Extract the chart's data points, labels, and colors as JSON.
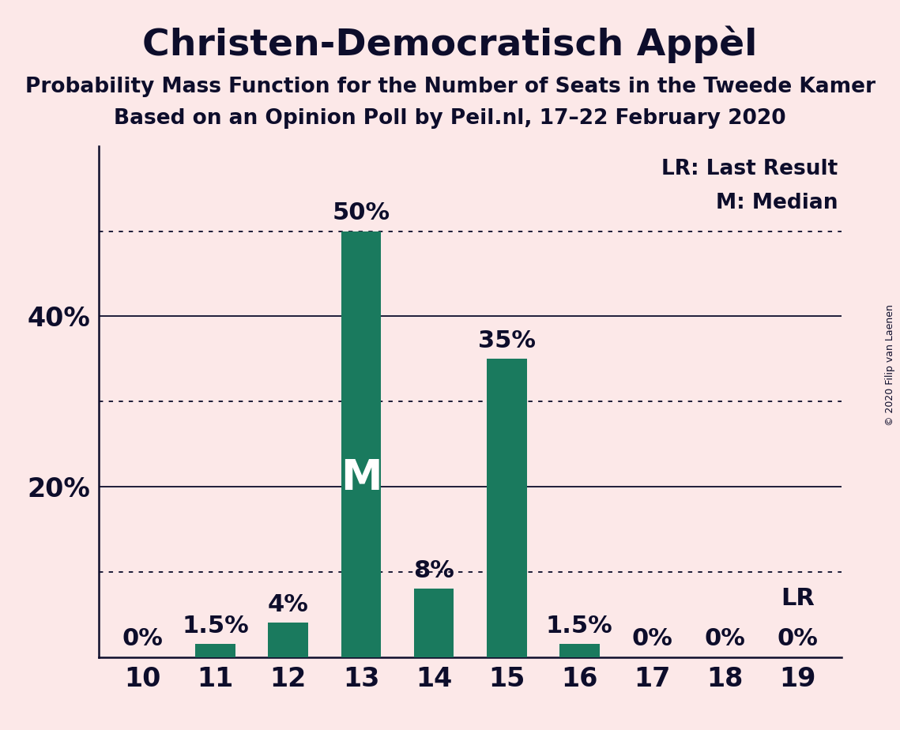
{
  "title": "Christen-Democratisch Appèl",
  "subtitle1": "Probability Mass Function for the Number of Seats in the Tweede Kamer",
  "subtitle2": "Based on an Opinion Poll by Peil.nl, 17–22 February 2020",
  "copyright": "© 2020 Filip van Laenen",
  "categories": [
    10,
    11,
    12,
    13,
    14,
    15,
    16,
    17,
    18,
    19
  ],
  "values": [
    0,
    1.5,
    4,
    50,
    8,
    35,
    1.5,
    0,
    0,
    0
  ],
  "labels": [
    "0%",
    "1.5%",
    "4%",
    "50%",
    "8%",
    "35%",
    "1.5%",
    "0%",
    "0%",
    "0%"
  ],
  "bar_color": "#1a7a5e",
  "background_color": "#fce8e8",
  "text_color": "#0d0d2b",
  "median_seat": 13,
  "median_label": "M",
  "lr_seat": 19,
  "lr_label": "LR",
  "dotted_lines": [
    10,
    30,
    50
  ],
  "solid_lines": [
    20,
    40
  ],
  "legend_lr": "LR: Last Result",
  "legend_m": "M: Median",
  "title_fontsize": 34,
  "subtitle_fontsize": 19,
  "label_fontsize": 22,
  "axis_fontsize": 24,
  "legend_fontsize": 19,
  "median_fontsize": 38,
  "bar_width": 0.55,
  "ylim": [
    0,
    60
  ],
  "ytick_positions": [
    20,
    40
  ],
  "ytick_labels": [
    "20%",
    "40%"
  ]
}
